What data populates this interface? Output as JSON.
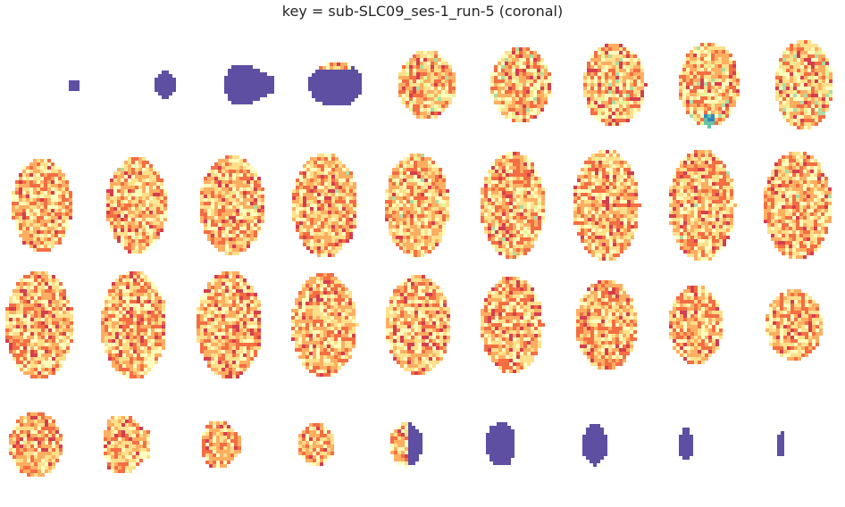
{
  "figure": {
    "title": "key = sub-SLC09_ses-1_run-5 (coronal)",
    "orientation": "coronal",
    "rows": 4,
    "cols": 9,
    "colormap": "Spectral",
    "colors": {
      "background": "#ffffff",
      "empty_slice": "#5e4fa2",
      "cmap_stops": [
        "#9e0142",
        "#d53e4f",
        "#f46d43",
        "#fdae61",
        "#fee08b",
        "#ffffbf",
        "#e6f598",
        "#abdda4",
        "#66c2a5",
        "#3288bd",
        "#5e4fa2"
      ]
    }
  }
}
